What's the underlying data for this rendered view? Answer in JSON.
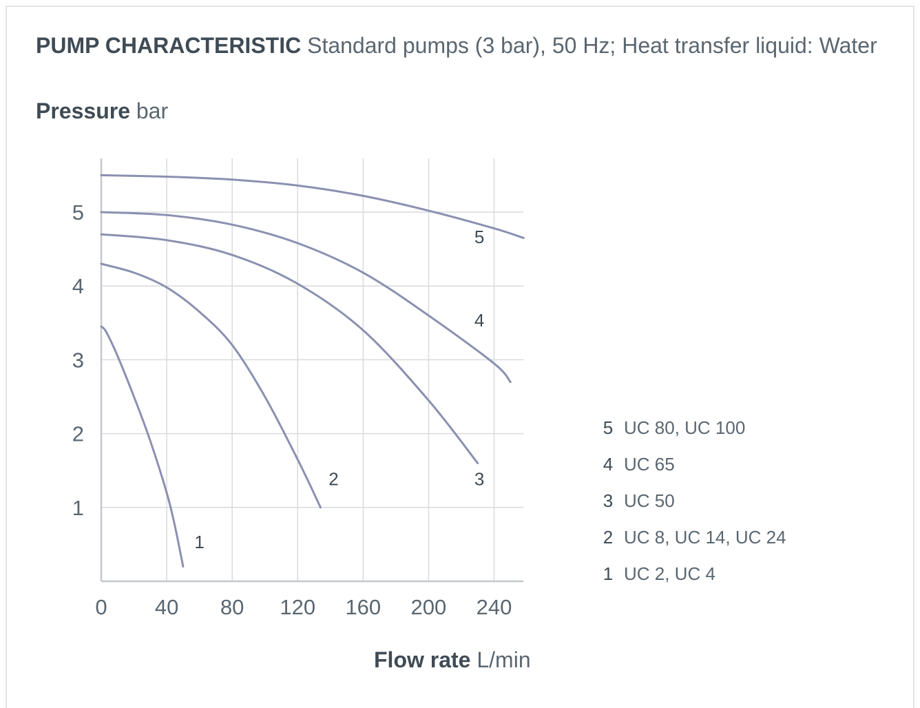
{
  "chart_data": {
    "type": "line",
    "title": "PUMP CHARACTERISTIC",
    "subtitle": "Standard pumps (3 bar), 50 Hz; Heat transfer liquid: Water",
    "ylabel": "Pressure",
    "yunit": "bar",
    "xlabel": "Flow rate",
    "xunit": "L/min",
    "xlim": [
      0,
      258
    ],
    "ylim": [
      0,
      5.75
    ],
    "xticks": [
      "0",
      "40",
      "80",
      "120",
      "160",
      "200",
      "240"
    ],
    "yticks": [
      "1",
      "2",
      "3",
      "4",
      "5"
    ],
    "grid": true,
    "series": [
      {
        "name": "1",
        "label": "UC 2, UC 4",
        "x": [
          0,
          3,
          10,
          20,
          30,
          40,
          45,
          50
        ],
        "y": [
          3.45,
          3.38,
          3.05,
          2.5,
          1.9,
          1.2,
          0.75,
          0.2
        ]
      },
      {
        "name": "2",
        "label": "UC 8, UC 14, UC 24",
        "x": [
          0,
          20,
          40,
          60,
          80,
          100,
          120,
          134
        ],
        "y": [
          4.3,
          4.18,
          3.98,
          3.65,
          3.2,
          2.5,
          1.65,
          1.0
        ]
      },
      {
        "name": "3",
        "label": "UC 50",
        "x": [
          0,
          40,
          80,
          120,
          160,
          200,
          230
        ],
        "y": [
          4.7,
          4.62,
          4.42,
          4.03,
          3.4,
          2.45,
          1.6
        ]
      },
      {
        "name": "4",
        "label": "UC 65",
        "x": [
          0,
          40,
          80,
          120,
          160,
          200,
          240,
          250
        ],
        "y": [
          5.0,
          4.96,
          4.83,
          4.58,
          4.18,
          3.6,
          2.95,
          2.7
        ]
      },
      {
        "name": "5",
        "label": "UC 80, UC 100",
        "x": [
          0,
          40,
          80,
          120,
          160,
          200,
          240,
          258
        ],
        "y": [
          5.5,
          5.48,
          5.44,
          5.36,
          5.22,
          5.02,
          4.78,
          4.65
        ]
      }
    ],
    "curve_labels": [
      {
        "text": "1",
        "x": 60,
        "y": 0.45
      },
      {
        "text": "2",
        "x": 142,
        "y": 1.3
      },
      {
        "text": "3",
        "x": 231,
        "y": 1.3
      },
      {
        "text": "4",
        "x": 231,
        "y": 3.45
      },
      {
        "text": "5",
        "x": 231,
        "y": 4.58
      }
    ],
    "colors": {
      "curve": "#8a90b0",
      "grid": "#d8dadc",
      "text": "#5a6670"
    }
  },
  "legend": [
    {
      "num": "5",
      "name": "UC 80, UC 100"
    },
    {
      "num": "4",
      "name": "UC 65"
    },
    {
      "num": "3",
      "name": "UC 50"
    },
    {
      "num": "2",
      "name": "UC 8, UC 14, UC 24"
    },
    {
      "num": "1",
      "name": "UC 2, UC 4"
    }
  ]
}
